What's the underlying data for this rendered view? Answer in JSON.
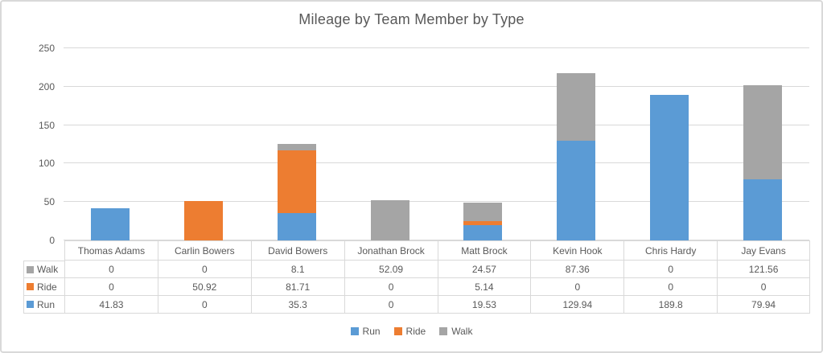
{
  "chart_data": {
    "type": "bar",
    "stacked": true,
    "title": "Mileage by Team Member by Type",
    "categories": [
      "Thomas Adams",
      "Carlin Bowers",
      "David Bowers",
      "Jonathan Brock",
      "Matt Brock",
      "Kevin Hook",
      "Chris Hardy",
      "Jay Evans"
    ],
    "series": [
      {
        "name": "Run",
        "color": "#5B9BD5",
        "values": [
          41.83,
          0,
          35.3,
          0,
          19.53,
          129.94,
          189.8,
          79.94
        ]
      },
      {
        "name": "Ride",
        "color": "#ED7D31",
        "values": [
          0,
          50.92,
          81.71,
          0,
          5.14,
          0,
          0,
          0
        ]
      },
      {
        "name": "Walk",
        "color": "#A5A5A5",
        "values": [
          0,
          0,
          8.1,
          52.09,
          24.57,
          87.36,
          0,
          121.56
        ]
      }
    ],
    "ylim": [
      0,
      250
    ],
    "y_ticks": [
      0,
      50,
      100,
      150,
      200,
      250
    ],
    "grid": true,
    "legend_position": "bottom",
    "legend_order": [
      "Run",
      "Ride",
      "Walk"
    ],
    "table_row_order": [
      "Walk",
      "Ride",
      "Run"
    ]
  },
  "styles": {
    "text_color": "#595959",
    "grid_color": "#D9D9D9",
    "frame_border_color": "#D9D9D9"
  }
}
